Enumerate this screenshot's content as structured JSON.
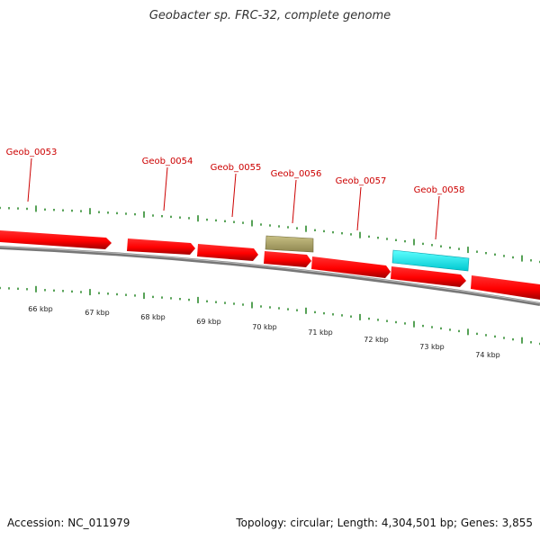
{
  "title": "Geobacter sp. FRC-32, complete genome",
  "footer": {
    "accession": "Accession: NC_011979",
    "summary": "Topology: circular; Length: 4,304,501 bp; Genes: 3,855"
  },
  "colors": {
    "gene_forward": "#ff0000",
    "gene_forward_dark": "#b00000",
    "feature_olive": "#b8b070",
    "feature_cyan": "#00ffff",
    "backbone": "#808080",
    "tick": "#2e8b2e",
    "label": "#cc0000"
  },
  "gene_labels": [
    "Geob_0053",
    "Geob_0054",
    "Geob_0055",
    "Geob_0056",
    "Geob_0057",
    "Geob_0058"
  ],
  "scale_labels": [
    "66 kbp",
    "67 kbp",
    "68 kbp",
    "69 kbp",
    "70 kbp",
    "71 kbp",
    "72 kbp",
    "73 kbp",
    "74 kbp"
  ]
}
